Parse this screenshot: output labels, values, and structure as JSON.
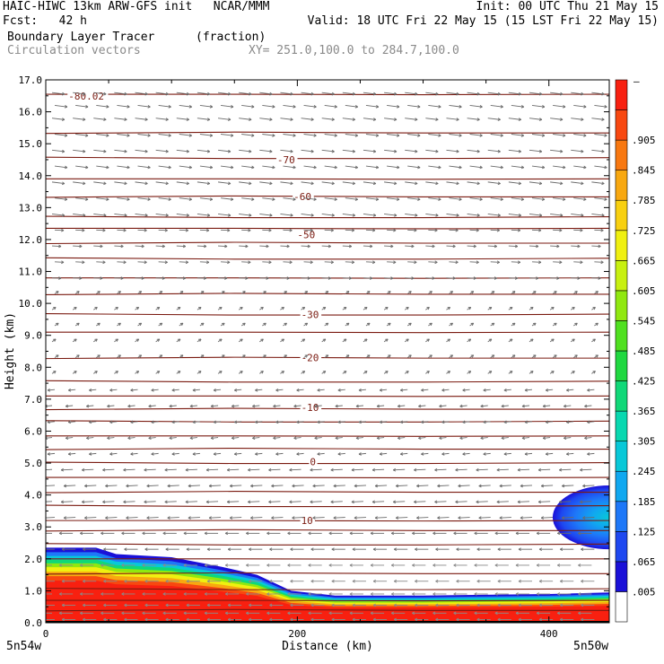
{
  "header": {
    "line1_left": "HAIC-HIWC 13km ARW-GFS init   NCAR/MMM",
    "line1_right": "Init: 00 UTC Thu 21 May 15",
    "line2_left": "Fcst:   42 h",
    "line2_right": "Valid: 18 UTC Fri 22 May 15 (15 LST Fri 22 May 15)",
    "field_name": "Boundary Layer Tracer",
    "field_units": "(fraction)",
    "vector_name": "Circulation vectors",
    "cross_section": "XY= 251.0,100.0 to 284.7,100.0"
  },
  "chart_data": {
    "type": "heatmap",
    "xlabel": "Distance (km)",
    "ylabel": "Height (km)",
    "xlim": [
      0,
      448
    ],
    "ylim": [
      0,
      17
    ],
    "x_ticks": [
      0,
      200,
      400
    ],
    "x_tick_labels": [
      "0",
      "200",
      "400"
    ],
    "y_ticks": [
      0,
      1,
      2,
      3,
      4,
      5,
      6,
      7,
      8,
      9,
      10,
      11,
      12,
      13,
      14,
      15,
      16,
      17
    ],
    "y_tick_labels": [
      "0.0",
      "1.0",
      "2.0",
      "3.0",
      "4.0",
      "5.0",
      "6.0",
      "7.0",
      "8.0",
      "9.0",
      "10.0",
      "11.0",
      "12.0",
      "13.0",
      "14.0",
      "15.0",
      "16.0",
      "17.0"
    ],
    "endpoint_left": "5n54w",
    "endpoint_right": "5n50w",
    "colorbar": {
      "colors": [
        "#ffffff",
        "#1a10d8",
        "#1e48f0",
        "#1e78f8",
        "#10a8f0",
        "#08c8d8",
        "#08d8b0",
        "#10d878",
        "#20d840",
        "#50e020",
        "#90e810",
        "#c8f010",
        "#f0f010",
        "#f8d010",
        "#f8a810",
        "#f87810",
        "#f84810",
        "#f82010"
      ],
      "labels": [
        ".005",
        ".065",
        ".125",
        ".185",
        ".245",
        ".305",
        ".365",
        ".425",
        ".485",
        ".545",
        ".605",
        ".665",
        ".725",
        ".785",
        ".845",
        ".905"
      ],
      "top_label": "–"
    },
    "tracer_layer": {
      "boundary_x": [
        0,
        40,
        56,
        100,
        140,
        168,
        195,
        230,
        300,
        400,
        448
      ],
      "boundary_top_km": [
        2.35,
        2.35,
        2.15,
        2.05,
        1.75,
        1.5,
        1.0,
        0.85,
        0.85,
        0.9,
        0.95
      ]
    },
    "tracer_blob": {
      "x_center": 448,
      "z_center": 3.3,
      "x_half_width": 45,
      "z_half_height": 1.0
    },
    "isotherm_levels_km": [
      0.4,
      0.7,
      1.05,
      1.55,
      2.0,
      2.45,
      2.9,
      3.2,
      3.65,
      4.1,
      4.55,
      5.0,
      5.45,
      5.85,
      6.3,
      6.7,
      7.1,
      7.55,
      8.3,
      9.1,
      9.65,
      10.3,
      10.8,
      11.4,
      11.9,
      12.35,
      12.7,
      13.35,
      13.9,
      14.55,
      15.35,
      16.55
    ],
    "contour_labels": [
      {
        "text": "-80.02",
        "x": 18,
        "z": 16.5
      },
      {
        "text": "-70",
        "x": 184,
        "z": 14.5
      },
      {
        "text": "-60",
        "x": 197,
        "z": 13.35
      },
      {
        "text": "-50",
        "x": 200,
        "z": 12.15
      },
      {
        "text": "-30",
        "x": 203,
        "z": 9.65
      },
      {
        "text": "-20",
        "x": 203,
        "z": 8.3
      },
      {
        "text": "-10",
        "x": 203,
        "z": 6.75
      },
      {
        "text": "0",
        "x": 210,
        "z": 5.05
      },
      {
        "text": "10",
        "x": 203,
        "z": 3.2
      }
    ],
    "vectors": {
      "x_spacing_km": 16.5,
      "levels_km": [
        16.6,
        16.2,
        15.8,
        15.3,
        14.8,
        14.3,
        13.8,
        13.3,
        12.8,
        12.3,
        11.8,
        11.3,
        10.8,
        10.3,
        9.8,
        9.3,
        8.8,
        8.3,
        7.8,
        7.3,
        6.8,
        6.3,
        5.8,
        5.3,
        4.8,
        4.3,
        3.8,
        3.3,
        2.8,
        2.3,
        1.8,
        1.3,
        0.9,
        0.55,
        0.3,
        0.1
      ]
    }
  }
}
